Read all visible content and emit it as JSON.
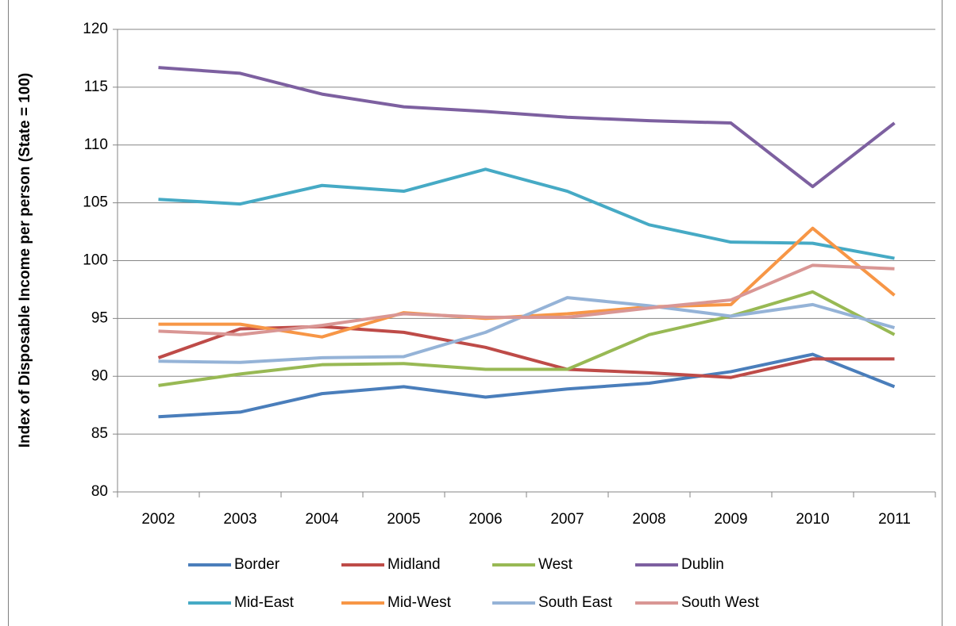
{
  "chart_data": {
    "type": "line",
    "y_label": "Index of Disposable Income per person (State = 100)",
    "categories": [
      "2002",
      "2003",
      "2004",
      "2005",
      "2006",
      "2007",
      "2008",
      "2009",
      "2010",
      "2011"
    ],
    "series": [
      {
        "name": "Border",
        "color": "#4a7ebb",
        "values": [
          86.5,
          86.9,
          88.5,
          89.1,
          88.2,
          88.9,
          89.4,
          90.4,
          91.9,
          89.1
        ]
      },
      {
        "name": "Midland",
        "color": "#be4b48",
        "values": [
          91.6,
          94.1,
          94.3,
          93.8,
          92.5,
          90.6,
          90.3,
          89.9,
          91.5,
          91.5
        ]
      },
      {
        "name": "West",
        "color": "#98b954",
        "values": [
          89.2,
          90.2,
          91.0,
          91.1,
          90.6,
          90.6,
          93.6,
          95.2,
          97.3,
          93.6
        ]
      },
      {
        "name": "Dublin",
        "color": "#7d60a0",
        "values": [
          116.7,
          116.2,
          114.4,
          113.3,
          112.9,
          112.4,
          112.1,
          111.9,
          106.4,
          111.9
        ]
      },
      {
        "name": "Mid-East",
        "color": "#46aac5",
        "values": [
          105.3,
          104.9,
          106.5,
          106.0,
          107.9,
          106.0,
          103.1,
          101.6,
          101.5,
          100.2
        ]
      },
      {
        "name": "Mid-West",
        "color": "#f79646",
        "values": [
          94.5,
          94.5,
          93.4,
          95.5,
          95.0,
          95.4,
          96.0,
          96.2,
          102.8,
          97.0
        ]
      },
      {
        "name": "South East",
        "color": "#95b3d7",
        "values": [
          91.3,
          91.2,
          91.6,
          91.7,
          93.8,
          96.8,
          96.1,
          95.2,
          96.2,
          94.2
        ]
      },
      {
        "name": "South West",
        "color": "#d99694",
        "values": [
          93.9,
          93.6,
          94.4,
          95.4,
          95.1,
          95.1,
          95.9,
          96.6,
          99.6,
          99.3
        ]
      }
    ],
    "ylim": [
      80,
      120
    ],
    "yticks": [
      80,
      85,
      90,
      95,
      100,
      105,
      110,
      115,
      120
    ],
    "grid": true
  }
}
